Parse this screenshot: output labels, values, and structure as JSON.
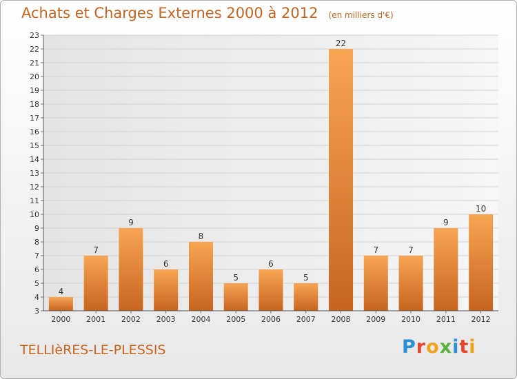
{
  "header": {
    "title": "Achats et Charges Externes 2000 à 2012",
    "subtitle": "(en milliers d'€)"
  },
  "footer": {
    "commune": "TELLIèRES-LE-PLESSIS",
    "logo_text": "Proxiti"
  },
  "colors": {
    "bar_light": "#f7a553",
    "bar_dark": "#c8641e",
    "text_accent": "#c8641e"
  },
  "chart_data": {
    "type": "bar",
    "title": "Achats et Charges Externes 2000 à 2012",
    "subtitle": "(en milliers d'€)",
    "categories": [
      "2000",
      "2001",
      "2002",
      "2003",
      "2004",
      "2005",
      "2006",
      "2007",
      "2008",
      "2009",
      "2010",
      "2011",
      "2012"
    ],
    "values": [
      4,
      7,
      9,
      6,
      8,
      5,
      6,
      5,
      22,
      7,
      7,
      9,
      10
    ],
    "ylim": [
      3,
      23
    ],
    "yticks": [
      3,
      4,
      5,
      6,
      7,
      8,
      9,
      10,
      11,
      12,
      13,
      14,
      15,
      16,
      17,
      18,
      19,
      20,
      21,
      22,
      23
    ],
    "grid": true
  }
}
